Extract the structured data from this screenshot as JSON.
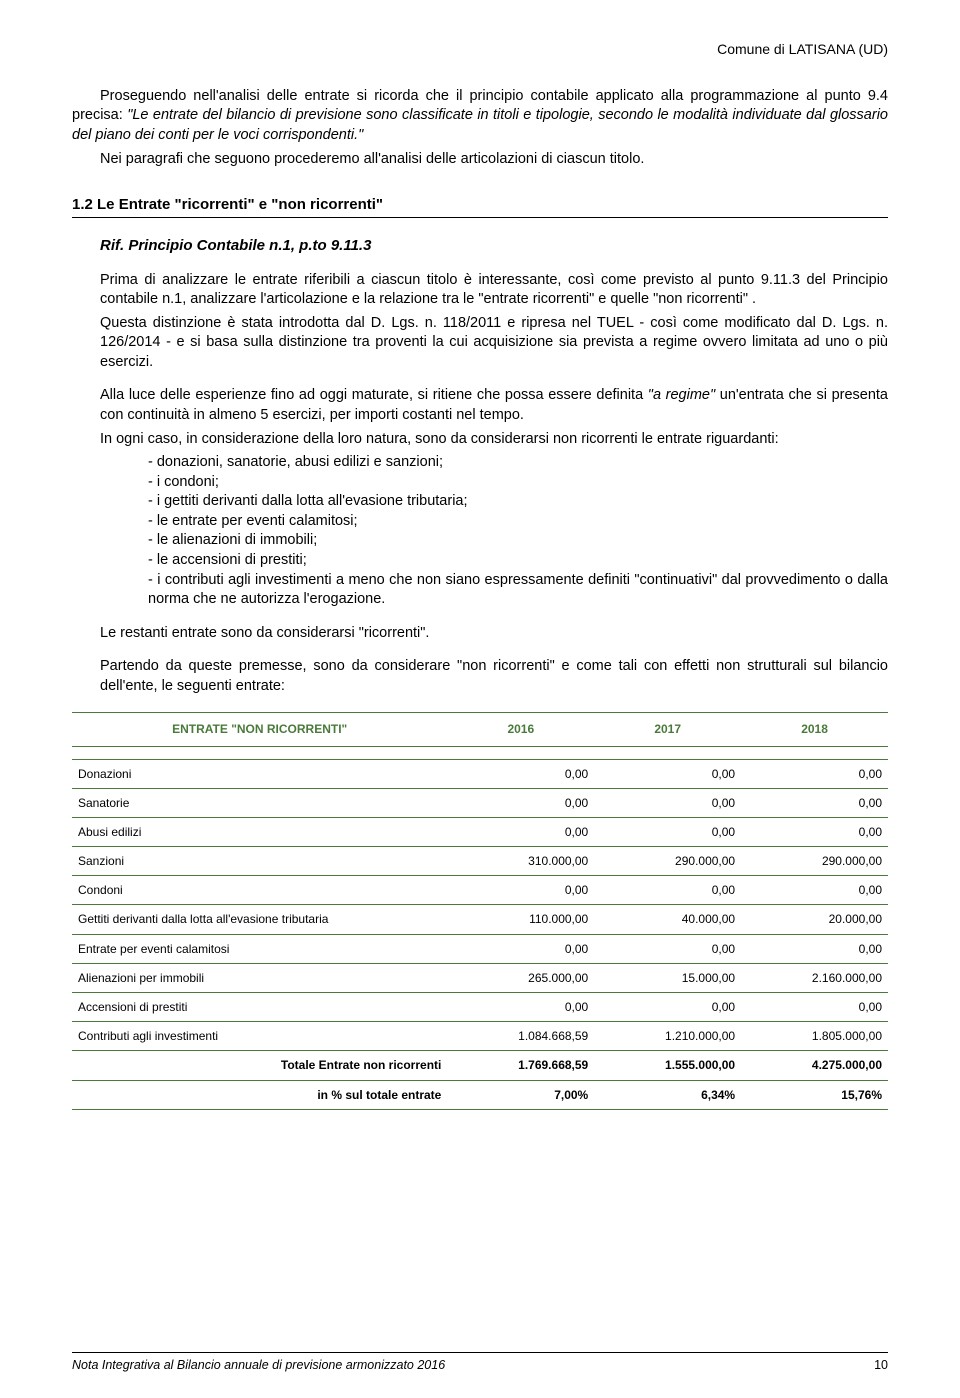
{
  "header": {
    "org": "Comune di LATISANA (UD)"
  },
  "intro": {
    "p1a": "Proseguendo nell'analisi delle entrate si ricorda che il principio contabile applicato alla programmazione al punto 9.4 precisa: ",
    "p1b": "\"Le entrate del bilancio di previsione sono classificate in titoli e tipologie, secondo le modalità individuate dal glossario del piano dei conti per le voci corrispondenti.\"",
    "p2": "Nei paragrafi che seguono procederemo all'analisi delle articolazioni di ciascun titolo."
  },
  "section": {
    "heading": "1.2 Le Entrate \"ricorrenti\" e \"non ricorrenti\"",
    "subheading": "Rif. Principio Contabile n.1, p.to 9.11.3",
    "para1": "Prima di analizzare le entrate riferibili a ciascun titolo è interessante, così come previsto al punto 9.11.3 del Principio contabile n.1, analizzare l'articolazione e la relazione tra le \"entrate ricorrenti\" e quelle \"non ricorrenti\" .",
    "para2": "Questa distinzione è stata introdotta dal D. Lgs. n. 118/2011 e ripresa nel TUEL - così come modificato dal D. Lgs. n. 126/2014 - e si basa sulla distinzione tra proventi la cui acquisizione sia prevista a regime ovvero limitata ad uno o più esercizi.",
    "para3a": "Alla luce delle esperienze fino ad oggi maturate, si ritiene che possa essere definita ",
    "para3b": "\"a regime\"",
    "para3c": " un'entrata che si presenta con continuità in almeno 5 esercizi, per importi costanti nel tempo.",
    "para4": "In ogni caso, in considerazione della loro natura, sono da considerarsi non ricorrenti le entrate riguardanti:",
    "bullets": [
      "- donazioni, sanatorie, abusi edilizi e sanzioni;",
      "- i condoni;",
      "- i gettiti derivanti dalla lotta all'evasione tributaria;",
      "- le entrate per eventi calamitosi;",
      "- le alienazioni di immobili;",
      "- le accensioni di prestiti;"
    ],
    "bullet_last": "- i contributi agli investimenti a meno che non siano espressamente definiti \"continuativi\" dal provvedimento o dalla norma che ne autorizza l'erogazione.",
    "para5": "Le restanti entrate sono da considerarsi \"ricorrenti\".",
    "para6": "Partendo da queste premesse, sono da considerare \"non ricorrenti\" e come tali con effetti non strutturali sul bilancio dell'ente, le seguenti entrate:"
  },
  "table": {
    "header_label": "ENTRATE \"NON RICORRENTI\"",
    "years": [
      "2016",
      "2017",
      "2018"
    ],
    "header_color": "#4a7a3a",
    "border_color": "#4a7a3a",
    "rows": [
      {
        "label": "Donazioni",
        "vals": [
          "0,00",
          "0,00",
          "0,00"
        ]
      },
      {
        "label": "Sanatorie",
        "vals": [
          "0,00",
          "0,00",
          "0,00"
        ]
      },
      {
        "label": "Abusi edilizi",
        "vals": [
          "0,00",
          "0,00",
          "0,00"
        ]
      },
      {
        "label": "Sanzioni",
        "vals": [
          "310.000,00",
          "290.000,00",
          "290.000,00"
        ]
      },
      {
        "label": "Condoni",
        "vals": [
          "0,00",
          "0,00",
          "0,00"
        ]
      },
      {
        "label": "Gettiti derivanti dalla lotta all'evasione tributaria",
        "vals": [
          "110.000,00",
          "40.000,00",
          "20.000,00"
        ]
      },
      {
        "label": "Entrate per eventi calamitosi",
        "vals": [
          "0,00",
          "0,00",
          "0,00"
        ]
      },
      {
        "label": "Alienazioni per immobili",
        "vals": [
          "265.000,00",
          "15.000,00",
          "2.160.000,00"
        ]
      },
      {
        "label": "Accensioni di prestiti",
        "vals": [
          "0,00",
          "0,00",
          "0,00"
        ]
      },
      {
        "label": "Contributi agli investimenti",
        "vals": [
          "1.084.668,59",
          "1.210.000,00",
          "1.805.000,00"
        ]
      }
    ],
    "total": {
      "label": "Totale Entrate non ricorrenti",
      "vals": [
        "1.769.668,59",
        "1.555.000,00",
        "4.275.000,00"
      ]
    },
    "pct": {
      "label": "in % sul totale entrate",
      "vals": [
        "7,00%",
        "6,34%",
        "15,76%"
      ]
    }
  },
  "footer": {
    "text": "Nota Integrativa al Bilancio annuale di previsione armonizzato 2016",
    "page": "10"
  }
}
